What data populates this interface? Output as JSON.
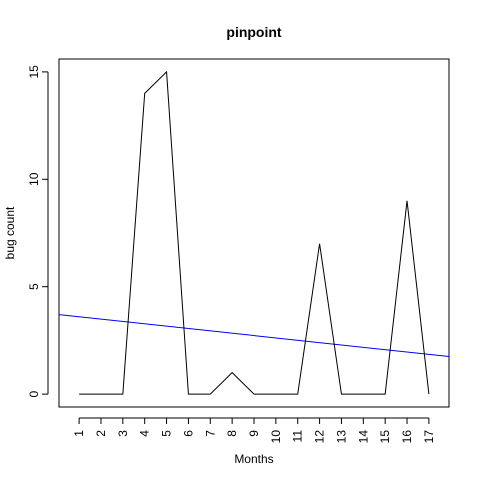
{
  "chart_data": {
    "type": "line",
    "title": "pinpoint",
    "xlabel": "Months",
    "ylabel": "bug count",
    "x": [
      1,
      2,
      3,
      4,
      5,
      6,
      7,
      8,
      9,
      10,
      11,
      12,
      13,
      14,
      15,
      16,
      17
    ],
    "x_tick_labels": [
      "1",
      "2",
      "3",
      "4",
      "5",
      "6",
      "7",
      "8",
      "9",
      "10",
      "11",
      "12",
      "13",
      "14",
      "15",
      "16",
      "17"
    ],
    "y_ticks": [
      0,
      5,
      10,
      15
    ],
    "y_tick_labels": [
      "0",
      "5",
      "10",
      "15"
    ],
    "xlim": [
      0.08,
      17.92
    ],
    "ylim": [
      -0.6,
      15.6
    ],
    "grid": false,
    "series": [
      {
        "values": [
          0,
          0,
          0,
          14,
          15,
          0,
          0,
          1,
          0,
          0,
          0,
          7,
          0,
          0,
          0,
          9,
          0
        ],
        "color": "#000000"
      }
    ],
    "trend_line": {
      "color": "#0000ff",
      "from": [
        0.08,
        3.7
      ],
      "to": [
        17.92,
        1.75
      ]
    }
  }
}
